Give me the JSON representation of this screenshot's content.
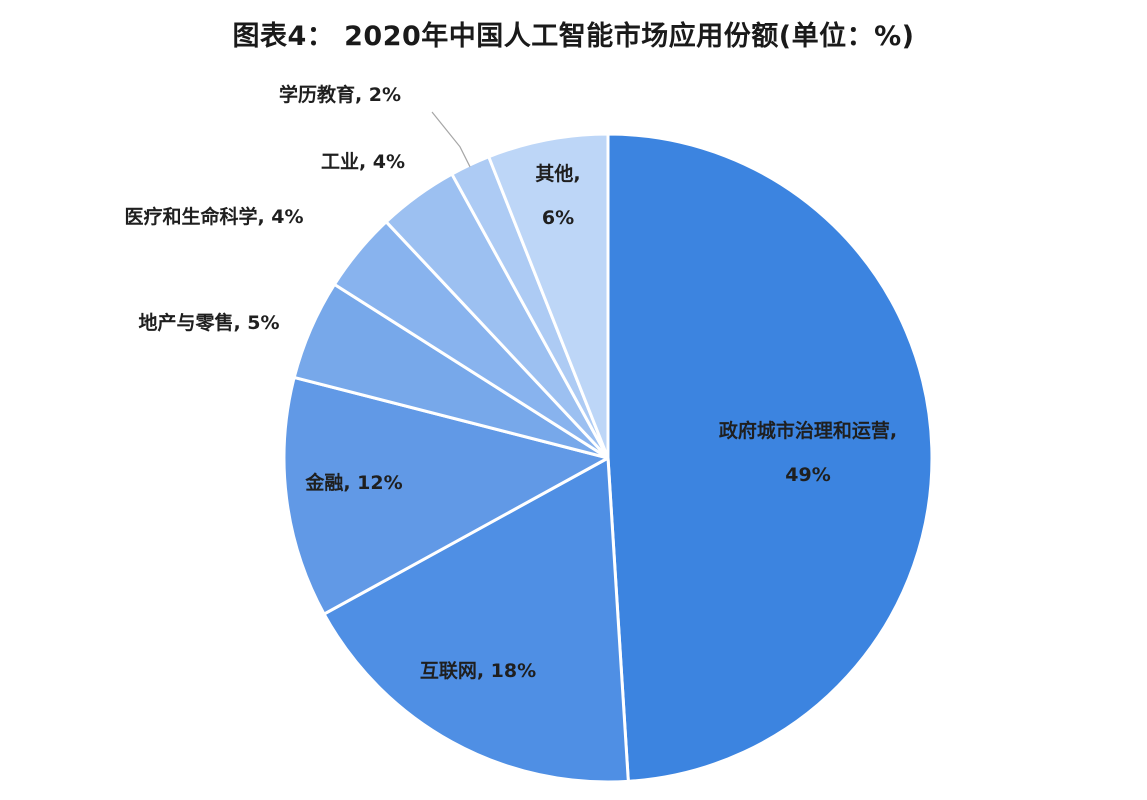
{
  "title": "图表4：  2020年中国人工智能市场应用份额(单位：%)",
  "chart_data": {
    "type": "pie",
    "categories": [
      "政府城市治理和运营",
      "互联网",
      "金融",
      "地产与零售",
      "医疗和生命科学",
      "工业",
      "学历教育",
      "其他"
    ],
    "values": [
      49,
      18,
      12,
      5,
      4,
      4,
      2,
      6
    ],
    "labels": [
      [
        "政府城市治理和运营,",
        "49%"
      ],
      [
        "互联网, 18%"
      ],
      [
        "金融, 12%"
      ],
      [
        "地产与零售, 5%"
      ],
      [
        "医疗和生命科学, 4%"
      ],
      [
        "工业, 4%"
      ],
      [
        "学历教育, 2%"
      ],
      [
        "其他,",
        "6%"
      ]
    ],
    "colors": [
      "#3c84e0",
      "#4f8fe4",
      "#6199e6",
      "#77a8ea",
      "#88b3ee",
      "#9cc0f1",
      "#adcbf4",
      "#bdd6f7"
    ],
    "start_angle": "12 o'clock",
    "direction": "clockwise"
  }
}
